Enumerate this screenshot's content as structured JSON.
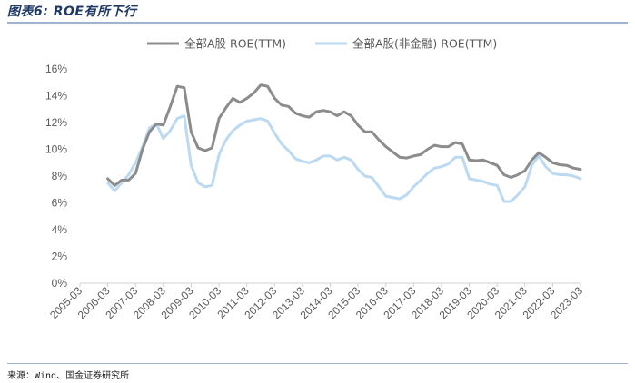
{
  "figure": {
    "title": "图表6: ROE有所下行",
    "source": "来源：Wind、国金证券研究所"
  },
  "chart_data": {
    "type": "line",
    "title": "",
    "xlabel": "",
    "ylabel": "",
    "ylim": [
      0,
      16
    ],
    "yticks": [
      "0%",
      "2%",
      "4%",
      "6%",
      "8%",
      "10%",
      "12%",
      "14%",
      "16%"
    ],
    "xticks": [
      "2005-03",
      "2006-03",
      "2007-03",
      "2008-03",
      "2009-03",
      "2010-03",
      "2011-03",
      "2012-03",
      "2013-03",
      "2014-03",
      "2015-03",
      "2016-03",
      "2017-03",
      "2018-03",
      "2019-03",
      "2020-03",
      "2021-03",
      "2022-03",
      "2023-03"
    ],
    "legend_position": "top",
    "grid": false,
    "x": [
      "2006-03",
      "2006-06",
      "2006-09",
      "2006-12",
      "2007-03",
      "2007-06",
      "2007-09",
      "2007-12",
      "2008-03",
      "2008-06",
      "2008-09",
      "2008-12",
      "2009-03",
      "2009-06",
      "2009-09",
      "2009-12",
      "2010-03",
      "2010-06",
      "2010-09",
      "2010-12",
      "2011-03",
      "2011-06",
      "2011-09",
      "2011-12",
      "2012-03",
      "2012-06",
      "2012-09",
      "2012-12",
      "2013-03",
      "2013-06",
      "2013-09",
      "2013-12",
      "2014-03",
      "2014-06",
      "2014-09",
      "2014-12",
      "2015-03",
      "2015-06",
      "2015-09",
      "2015-12",
      "2016-03",
      "2016-06",
      "2016-09",
      "2016-12",
      "2017-03",
      "2017-06",
      "2017-09",
      "2017-12",
      "2018-03",
      "2018-06",
      "2018-09",
      "2018-12",
      "2019-03",
      "2019-06",
      "2019-09",
      "2019-12",
      "2020-03",
      "2020-06",
      "2020-09",
      "2020-12",
      "2021-03",
      "2021-06",
      "2021-09",
      "2021-12",
      "2022-03",
      "2022-06",
      "2022-09",
      "2022-12",
      "2023-03"
    ],
    "series": [
      {
        "name": "全部A股 ROE(TTM)",
        "color": "#8c8c8c",
        "values": [
          7.8,
          7.3,
          7.7,
          7.7,
          8.2,
          10.0,
          11.3,
          11.9,
          11.8,
          13.2,
          14.7,
          14.6,
          11.3,
          10.1,
          9.9,
          10.1,
          12.3,
          13.1,
          13.8,
          13.5,
          13.8,
          14.2,
          14.8,
          14.7,
          13.8,
          13.3,
          13.2,
          12.7,
          12.5,
          12.4,
          12.8,
          12.9,
          12.8,
          12.5,
          12.8,
          12.5,
          11.8,
          11.3,
          11.3,
          10.7,
          10.2,
          9.8,
          9.4,
          9.35,
          9.5,
          9.6,
          10.0,
          10.3,
          10.2,
          10.2,
          10.5,
          10.4,
          9.2,
          9.15,
          9.2,
          9.0,
          8.8,
          8.1,
          7.9,
          8.1,
          8.4,
          9.2,
          9.75,
          9.4,
          9.0,
          8.85,
          8.8,
          8.6,
          8.5
        ]
      },
      {
        "name": "全部A股(非金融) ROE(TTM)",
        "color": "#bcd9f2",
        "values": [
          7.5,
          6.9,
          7.5,
          8.1,
          9.0,
          10.2,
          11.6,
          11.9,
          10.8,
          11.4,
          12.3,
          12.5,
          8.8,
          7.5,
          7.2,
          7.3,
          9.6,
          10.7,
          11.4,
          11.8,
          12.1,
          12.2,
          12.3,
          12.1,
          11.2,
          10.4,
          9.9,
          9.3,
          9.1,
          9.0,
          9.2,
          9.5,
          9.5,
          9.2,
          9.4,
          9.2,
          8.5,
          8.0,
          7.9,
          7.2,
          6.5,
          6.4,
          6.3,
          6.6,
          7.2,
          7.7,
          8.2,
          8.6,
          8.7,
          8.9,
          9.4,
          9.4,
          7.8,
          7.7,
          7.6,
          7.4,
          7.3,
          6.1,
          6.1,
          6.6,
          7.2,
          8.8,
          9.5,
          8.7,
          8.2,
          8.1,
          8.1,
          8.0,
          7.8
        ]
      }
    ]
  }
}
